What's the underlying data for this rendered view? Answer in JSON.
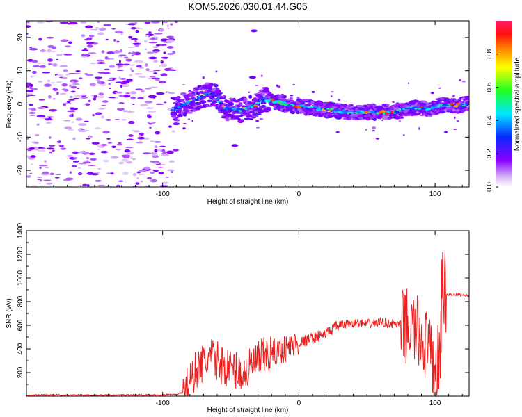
{
  "title": "KOM5.2026.030.01.44.G05",
  "chart_data": [
    {
      "type": "heatmap",
      "name": "spectrogram",
      "xlabel": "Height of straight line (km)",
      "ylabel": "Frequency (Hz)",
      "xlim": [
        -200,
        125
      ],
      "ylim": [
        -25,
        25
      ],
      "xticks": [
        -100,
        0,
        100
      ],
      "yticks": [
        -20,
        -10,
        0,
        10,
        20
      ],
      "colorbar": {
        "label": "Normalized spectral amplitude",
        "range": [
          0,
          1
        ],
        "ticks": [
          0.0,
          0.2,
          0.4,
          0.6,
          0.8
        ],
        "tick_labels": [
          "0.0",
          "0.2",
          "0.4",
          "0.6",
          "0.8"
        ]
      },
      "ridge": [
        {
          "x": -90,
          "f": -1.5
        },
        {
          "x": -80,
          "f": 0.5
        },
        {
          "x": -70,
          "f": 2.5
        },
        {
          "x": -62,
          "f": 3
        },
        {
          "x": -55,
          "f": -1
        },
        {
          "x": -45,
          "f": -2
        },
        {
          "x": -35,
          "f": -1
        },
        {
          "x": -25,
          "f": 1.5
        },
        {
          "x": -15,
          "f": 0.5
        },
        {
          "x": -5,
          "f": -0.5
        },
        {
          "x": 5,
          "f": -1
        },
        {
          "x": 15,
          "f": -1.5
        },
        {
          "x": 25,
          "f": -2
        },
        {
          "x": 35,
          "f": -2.5
        },
        {
          "x": 45,
          "f": -2.5
        },
        {
          "x": 55,
          "f": -2.5
        },
        {
          "x": 65,
          "f": -2.5
        },
        {
          "x": 75,
          "f": -2
        },
        {
          "x": 85,
          "f": -1
        },
        {
          "x": 95,
          "f": -1.5
        },
        {
          "x": 105,
          "f": -0.5
        },
        {
          "x": 115,
          "f": -0.5
        },
        {
          "x": 125,
          "f": 0
        }
      ]
    },
    {
      "type": "line",
      "name": "snr",
      "xlabel": "Height of straight line (km)",
      "ylabel": "SNR (v/v)",
      "xlim": [
        -200,
        125
      ],
      "ylim": [
        0,
        1400
      ],
      "xticks": [
        -100,
        0,
        100
      ],
      "yticks": [
        200,
        400,
        600,
        800,
        1000,
        1200,
        1400
      ],
      "color": "#e8201e",
      "x": [
        -200,
        -180,
        -160,
        -140,
        -120,
        -100,
        -90,
        -85,
        -80,
        -75,
        -70,
        -65,
        -60,
        -55,
        -50,
        -45,
        -40,
        -35,
        -30,
        -25,
        -20,
        -15,
        -10,
        -5,
        0,
        5,
        10,
        15,
        20,
        25,
        30,
        35,
        40,
        45,
        50,
        55,
        60,
        65,
        70,
        75,
        80,
        85,
        90,
        95,
        98,
        100,
        103,
        105,
        106,
        107,
        110,
        115,
        120,
        125
      ],
      "values": [
        10,
        10,
        8,
        8,
        10,
        10,
        15,
        30,
        120,
        230,
        280,
        330,
        300,
        250,
        230,
        220,
        190,
        250,
        300,
        340,
        360,
        380,
        400,
        430,
        450,
        470,
        490,
        510,
        530,
        570,
        600,
        610,
        620,
        615,
        610,
        620,
        625,
        620,
        610,
        600,
        590,
        560,
        500,
        400,
        250,
        200,
        350,
        700,
        1000,
        850,
        860,
        860,
        855,
        850
      ]
    }
  ]
}
